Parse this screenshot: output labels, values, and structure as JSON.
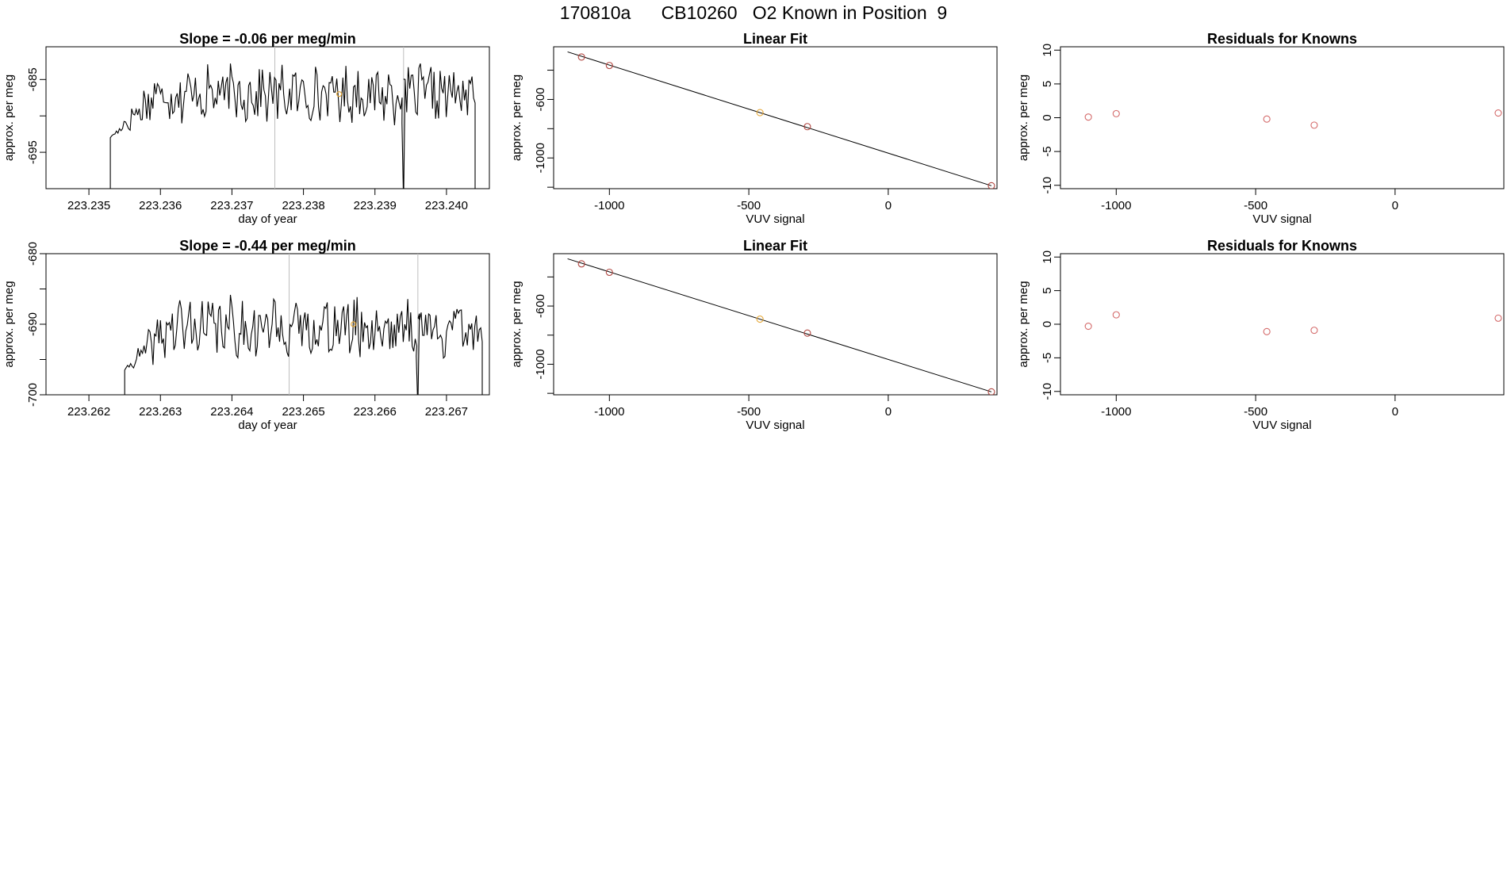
{
  "header": {
    "title": "170810a      CB10260   O2 Known in Position  9"
  },
  "colors": {
    "line": "#000000",
    "frame": "#000000",
    "vline": "#bebebe",
    "fit_point": "#000000",
    "fit_point_highlight": "#e6a93a",
    "residual_point": "#d46a6a",
    "trace_marker": "#e6a93a"
  },
  "chart_data": [
    {
      "type": "line",
      "title": "Slope =  -0.06  per meg/min",
      "xlabel": "day of year",
      "ylabel": "approx. per meg",
      "xlim": [
        223.2344,
        223.2406
      ],
      "ylim": [
        -700,
        -680.5
      ],
      "xticks": [
        "223.235",
        "223.236",
        "223.237",
        "223.238",
        "223.239",
        "223.240"
      ],
      "yticks": [
        "-685",
        "-695"
      ],
      "ytick_values": [
        -685,
        -695
      ],
      "extra_yticks": [
        -680,
        -690
      ],
      "vlines": [
        223.2376,
        223.2394
      ],
      "series": [
        {
          "x_start": 223.2353,
          "x_end": 223.2404,
          "seed": 17,
          "base": -687,
          "amp": 3.2
        }
      ],
      "dropouts": [
        {
          "x": 223.2353,
          "to": -700
        },
        {
          "x": 223.2394,
          "to": -700
        },
        {
          "x": 223.2404,
          "to": -700
        }
      ],
      "marker": {
        "x": 223.2385,
        "y": -687
      }
    },
    {
      "type": "scatter",
      "title": "Linear Fit",
      "xlabel": "VUV signal",
      "ylabel": "approx. per meg",
      "xlim": [
        -1200,
        390
      ],
      "ylim": [
        -1210,
        -240
      ],
      "xticks": [
        "-1000",
        "-500",
        "0"
      ],
      "xtick_values": [
        -1000,
        -500,
        0
      ],
      "yticks": [
        "-600",
        "-1000"
      ],
      "ytick_values": [
        -600,
        -1000
      ],
      "extra_yticks": [
        -400,
        -800,
        -1200
      ],
      "points": [
        {
          "x": -1100,
          "y": -310,
          "highlight": false
        },
        {
          "x": -1000,
          "y": -368,
          "highlight": false
        },
        {
          "x": -460,
          "y": -690,
          "highlight": true
        },
        {
          "x": -290,
          "y": -786,
          "highlight": false
        },
        {
          "x": 370,
          "y": -1190,
          "highlight": false
        }
      ],
      "fit_line": {
        "x": [
          -1150,
          370
        ],
        "y": [
          -275,
          -1190
        ]
      }
    },
    {
      "type": "scatter",
      "title": "Residuals for Knowns",
      "xlabel": "VUV signal",
      "ylabel": "approx. per meg",
      "xlim": [
        -1200,
        390
      ],
      "ylim": [
        -10.5,
        10.5
      ],
      "xticks": [
        "-1000",
        "-500",
        "0"
      ],
      "xtick_values": [
        -1000,
        -500,
        0
      ],
      "yticks": [
        "10",
        "5",
        "0",
        "-5",
        "-10"
      ],
      "ytick_values": [
        10,
        5,
        0,
        -5,
        -10
      ],
      "points": [
        {
          "x": -1100,
          "y": 0.1
        },
        {
          "x": -1000,
          "y": 0.6
        },
        {
          "x": -460,
          "y": -0.2
        },
        {
          "x": -290,
          "y": -1.1
        },
        {
          "x": 370,
          "y": 0.7
        }
      ]
    },
    {
      "type": "line",
      "title": "Slope =  -0.44  per meg/min",
      "xlabel": "day of year",
      "ylabel": "approx. per meg",
      "xlim": [
        223.2614,
        223.2676
      ],
      "ylim": [
        -700,
        -680
      ],
      "xticks": [
        "223.262",
        "223.263",
        "223.264",
        "223.265",
        "223.266",
        "223.267"
      ],
      "yticks": [
        "-680",
        "-690",
        "-700"
      ],
      "ytick_values": [
        -680,
        -690,
        -700
      ],
      "extra_yticks": [
        -685,
        -695
      ],
      "vlines": [
        223.2648,
        223.2666
      ],
      "series": [
        {
          "x_start": 223.2625,
          "x_end": 223.2675,
          "seed": 41,
          "base": -690.5,
          "amp": 3.6
        }
      ],
      "dropouts": [
        {
          "x": 223.2625,
          "to": -700
        },
        {
          "x": 223.2666,
          "to": -700
        },
        {
          "x": 223.2675,
          "to": -700
        }
      ],
      "marker": {
        "x": 223.2657,
        "y": -690
      }
    },
    {
      "type": "scatter",
      "title": "Linear Fit",
      "xlabel": "VUV signal",
      "ylabel": "approx. per meg",
      "xlim": [
        -1200,
        390
      ],
      "ylim": [
        -1210,
        -240
      ],
      "xticks": [
        "-1000",
        "-500",
        "0"
      ],
      "xtick_values": [
        -1000,
        -500,
        0
      ],
      "yticks": [
        "-600",
        "-1000"
      ],
      "ytick_values": [
        -600,
        -1000
      ],
      "extra_yticks": [
        -400,
        -800,
        -1200
      ],
      "points": [
        {
          "x": -1100,
          "y": -310,
          "highlight": false
        },
        {
          "x": -1000,
          "y": -368,
          "highlight": false
        },
        {
          "x": -460,
          "y": -690,
          "highlight": true
        },
        {
          "x": -290,
          "y": -786,
          "highlight": false
        },
        {
          "x": 370,
          "y": -1190,
          "highlight": false
        }
      ],
      "fit_line": {
        "x": [
          -1150,
          370
        ],
        "y": [
          -275,
          -1190
        ]
      }
    },
    {
      "type": "scatter",
      "title": "Residuals for Knowns",
      "xlabel": "VUV signal",
      "ylabel": "approx. per meg",
      "xlim": [
        -1200,
        390
      ],
      "ylim": [
        -10.5,
        10.5
      ],
      "xticks": [
        "-1000",
        "-500",
        "0"
      ],
      "xtick_values": [
        -1000,
        -500,
        0
      ],
      "yticks": [
        "10",
        "5",
        "0",
        "-5",
        "-10"
      ],
      "ytick_values": [
        10,
        5,
        0,
        -5,
        -10
      ],
      "points": [
        {
          "x": -1100,
          "y": -0.3
        },
        {
          "x": -1000,
          "y": 1.4
        },
        {
          "x": -460,
          "y": -1.1
        },
        {
          "x": -290,
          "y": -0.9
        },
        {
          "x": 370,
          "y": 0.9
        }
      ]
    }
  ]
}
